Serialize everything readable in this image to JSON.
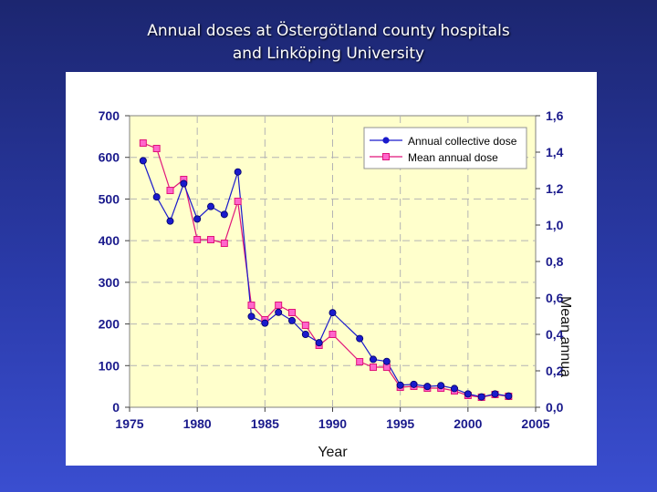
{
  "slide": {
    "title_line1": "Annual doses at Östergötland county hospitals",
    "title_line2": "and Linköping University"
  },
  "colors": {
    "background": "#2a3aa8",
    "plot_area": "#ffffcc",
    "series1": "#1a1acc",
    "series2": "#e0157a",
    "series2_fill": "#ff66cc"
  },
  "chart_data": {
    "type": "line",
    "xlabel": "Year",
    "ylabel": "",
    "y2label": "Mean annua",
    "xlim": [
      1975,
      2005
    ],
    "ylim": [
      0,
      700
    ],
    "y2lim": [
      0,
      1.6
    ],
    "xticks": [
      "1975",
      "1980",
      "1985",
      "1990",
      "1995",
      "2000",
      "2005"
    ],
    "yticks": [
      "0",
      "100",
      "200",
      "300",
      "400",
      "500",
      "600",
      "700"
    ],
    "y2ticks": [
      "0,0",
      "0,2",
      "0,4",
      "0,6",
      "0,8",
      "1,0",
      "1,2",
      "1,4",
      "1,6"
    ],
    "grid": true,
    "legend_position": "top-right",
    "series": [
      {
        "name": "Annual collective dose",
        "axis": "left",
        "marker": "circle",
        "x": [
          1976,
          1977,
          1978,
          1979,
          1980,
          1981,
          1982,
          1983,
          1984,
          1985,
          1986,
          1987,
          1988,
          1989,
          1990,
          1992,
          1993,
          1994,
          1995,
          1996,
          1997,
          1998,
          1999,
          2000,
          2001,
          2002,
          2003
        ],
        "values": [
          592,
          505,
          447,
          537,
          452,
          482,
          463,
          565,
          218,
          202,
          228,
          208,
          175,
          155,
          227,
          165,
          115,
          110,
          53,
          55,
          50,
          52,
          45,
          32,
          25,
          32,
          27
        ]
      },
      {
        "name": "Mean annual dose",
        "axis": "right",
        "marker": "square",
        "x": [
          1976,
          1977,
          1978,
          1979,
          1980,
          1981,
          1982,
          1983,
          1984,
          1985,
          1986,
          1987,
          1988,
          1989,
          1990,
          1992,
          1993,
          1994,
          1995,
          1996,
          1997,
          1998,
          1999,
          2000,
          2001,
          2002,
          2003
        ],
        "values": [
          1.45,
          1.42,
          1.19,
          1.25,
          0.92,
          0.92,
          0.9,
          1.13,
          0.56,
          0.48,
          0.56,
          0.52,
          0.45,
          0.34,
          0.4,
          0.25,
          0.22,
          0.22,
          0.11,
          0.115,
          0.105,
          0.105,
          0.09,
          0.065,
          0.055,
          0.07,
          0.06
        ]
      }
    ]
  }
}
